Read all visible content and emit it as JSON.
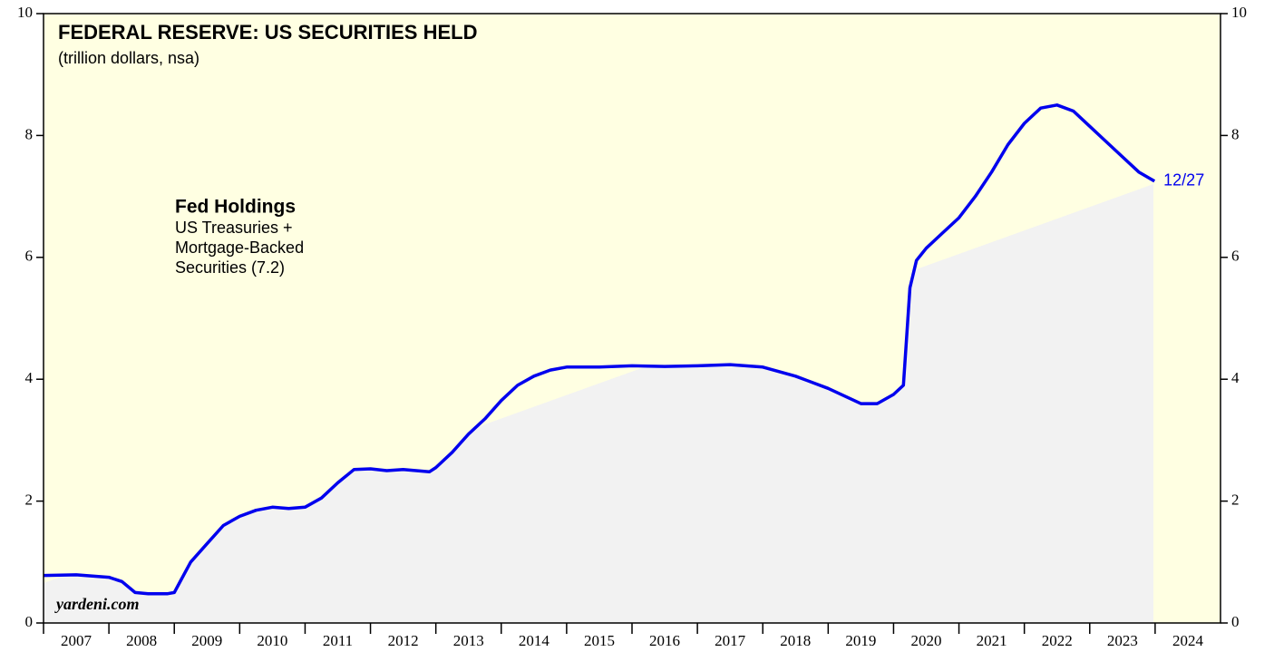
{
  "chart_data": {
    "type": "line",
    "title": "FEDERAL RESERVE: US SECURITIES HELD",
    "subtitle": "(trillion dollars, nsa)",
    "annotation": {
      "title": "Fed Holdings",
      "lines": [
        "US Treasuries +",
        "Mortgage-Backed",
        "Securities (7.2)"
      ]
    },
    "end_label": "12/27",
    "source": "yardeni.com",
    "xlim": [
      2007,
      2025
    ],
    "xticks": [
      2007,
      2008,
      2009,
      2010,
      2011,
      2012,
      2013,
      2014,
      2015,
      2016,
      2017,
      2018,
      2019,
      2020,
      2021,
      2022,
      2023,
      2024
    ],
    "ylim": [
      0,
      10
    ],
    "yticks": [
      0,
      2,
      4,
      6,
      8,
      10
    ],
    "series": [
      {
        "name": "Fed Holdings",
        "color": "#0000ee",
        "x": [
          2007.0,
          2007.5,
          2008.0,
          2008.2,
          2008.4,
          2008.6,
          2008.9,
          2009.0,
          2009.1,
          2009.25,
          2009.5,
          2009.75,
          2010.0,
          2010.25,
          2010.5,
          2010.75,
          2011.0,
          2011.25,
          2011.5,
          2011.75,
          2012.0,
          2012.25,
          2012.5,
          2012.9,
          2013.0,
          2013.25,
          2013.5,
          2013.75,
          2014.0,
          2014.25,
          2014.5,
          2014.75,
          2015.0,
          2015.5,
          2016.0,
          2016.5,
          2017.0,
          2017.5,
          2018.0,
          2018.5,
          2019.0,
          2019.5,
          2019.75,
          2020.0,
          2020.15,
          2020.25,
          2020.35,
          2020.5,
          2020.75,
          2021.0,
          2021.25,
          2021.5,
          2021.75,
          2022.0,
          2022.25,
          2022.5,
          2022.75,
          2023.0,
          2023.25,
          2023.5,
          2023.75,
          2023.99
        ],
        "values": [
          0.78,
          0.79,
          0.75,
          0.68,
          0.5,
          0.48,
          0.48,
          0.5,
          0.7,
          1.0,
          1.3,
          1.6,
          1.75,
          1.85,
          1.9,
          1.88,
          1.9,
          2.05,
          2.3,
          2.52,
          2.53,
          2.5,
          2.52,
          2.48,
          2.55,
          2.8,
          3.1,
          3.35,
          3.65,
          3.9,
          4.05,
          4.15,
          4.2,
          4.2,
          4.22,
          4.21,
          4.22,
          4.24,
          4.2,
          4.05,
          3.85,
          3.6,
          3.6,
          3.75,
          3.9,
          5.5,
          5.95,
          6.15,
          6.4,
          6.65,
          7.0,
          7.4,
          7.85,
          8.2,
          8.45,
          8.5,
          8.4,
          8.15,
          7.9,
          7.65,
          7.4,
          7.25
        ]
      }
    ]
  }
}
